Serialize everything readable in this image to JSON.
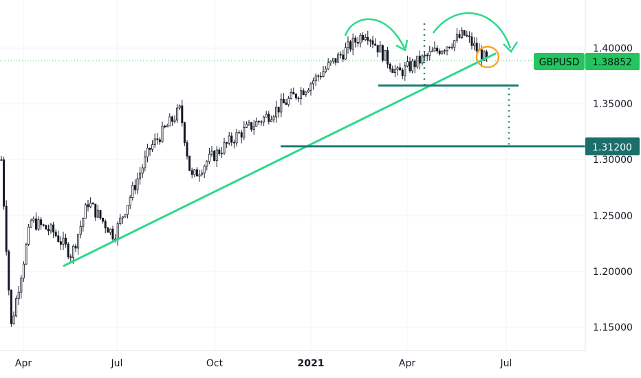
{
  "chart_data": {
    "type": "candlestick",
    "symbol": "GBPUSD",
    "last_price": "1.38852",
    "target_label": "1.31200",
    "colors": {
      "candle": "#131722",
      "trendline": "#2bd98a",
      "level": "#1b7a75",
      "arrow": "#2bd98a",
      "circle": "#f5a623",
      "tag_bg": "#22c55e",
      "target_tag_bg": "#1b6e6a"
    },
    "y_axis": {
      "ticks": [
        "1.40000",
        "1.35000",
        "1.30000",
        "1.25000",
        "1.20000",
        "1.15000"
      ],
      "range": [
        1.128,
        1.434
      ]
    },
    "x_axis": {
      "ticks": [
        "Apr",
        "Jul",
        "Oct",
        "2021",
        "Apr",
        "Jul"
      ]
    },
    "series": [
      {
        "x": "Mar 2020",
        "y": 1.3
      },
      {
        "x": "Mar 2020",
        "y": 1.15
      },
      {
        "x": "Apr 2020",
        "y": 1.245
      },
      {
        "x": "May 2020",
        "y": 1.235
      },
      {
        "x": "May 2020",
        "y": 1.215
      },
      {
        "x": "Jun 2020",
        "y": 1.262
      },
      {
        "x": "Jul 2020",
        "y": 1.232
      },
      {
        "x": "Aug 2020",
        "y": 1.31
      },
      {
        "x": "Sep 2020",
        "y": 1.345
      },
      {
        "x": "Sep 2020",
        "y": 1.283
      },
      {
        "x": "Oct 2020",
        "y": 1.298
      },
      {
        "x": "Nov 2020",
        "y": 1.322
      },
      {
        "x": "Dec 2020",
        "y": 1.342
      },
      {
        "x": "Jan 2021",
        "y": 1.365
      },
      {
        "x": "Feb 2021",
        "y": 1.415
      },
      {
        "x": "Mar 2021",
        "y": 1.377
      },
      {
        "x": "Apr 2021",
        "y": 1.385
      },
      {
        "x": "May 2021",
        "y": 1.412
      },
      {
        "x": "Jun 2021",
        "y": 1.388
      }
    ],
    "trendline": {
      "from": {
        "x": "May 2020",
        "y": 1.205
      },
      "to": {
        "x": "Jun 2021",
        "y": 1.395
      }
    },
    "neckline": 1.3665,
    "target_level": 1.312
  }
}
